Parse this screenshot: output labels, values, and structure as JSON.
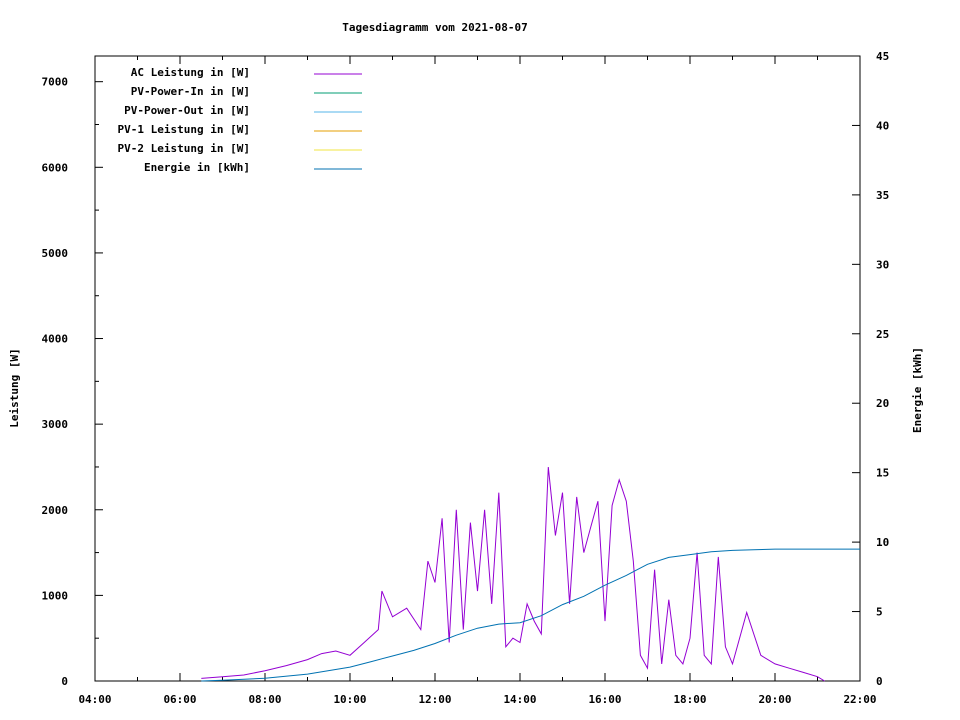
{
  "chart_data": {
    "type": "line",
    "title": "Tagesdiagramm vom 2021-08-07",
    "ylabel": "Leistung [W]",
    "y2label": "Energie [kWh]",
    "xlim": [
      "04:00",
      "22:00"
    ],
    "ylim": [
      0,
      7300
    ],
    "y2lim": [
      0,
      45
    ],
    "x_ticks": [
      "04:00",
      "06:00",
      "08:00",
      "10:00",
      "12:00",
      "14:00",
      "16:00",
      "18:00",
      "20:00",
      "22:00"
    ],
    "y_ticks": [
      0,
      1000,
      2000,
      3000,
      4000,
      5000,
      6000,
      7000
    ],
    "y2_ticks": [
      0,
      5,
      10,
      15,
      20,
      25,
      30,
      35,
      40,
      45
    ],
    "grid": false,
    "legend_position": "top-left",
    "legend": [
      {
        "name": "AC Leistung in [W]",
        "color": "#9400d3"
      },
      {
        "name": "PV-Power-In in [W]",
        "color": "#009e73"
      },
      {
        "name": "PV-Power-Out in [W]",
        "color": "#56b4e9"
      },
      {
        "name": "PV-1 Leistung in [W]",
        "color": "#e69f00"
      },
      {
        "name": "PV-2 Leistung in [W]",
        "color": "#f0e442"
      },
      {
        "name": "Energie in [kWh]",
        "color": "#0072b2"
      }
    ],
    "series": [
      {
        "name": "AC Leistung in [W]",
        "axis": "y1",
        "color": "#9400d3",
        "x": [
          "06:30",
          "07:00",
          "07:30",
          "08:00",
          "08:30",
          "09:00",
          "09:20",
          "09:40",
          "10:00",
          "10:20",
          "10:40",
          "10:45",
          "11:00",
          "11:20",
          "11:40",
          "11:50",
          "12:00",
          "12:10",
          "12:20",
          "12:30",
          "12:40",
          "12:50",
          "13:00",
          "13:10",
          "13:20",
          "13:30",
          "13:40",
          "13:50",
          "14:00",
          "14:10",
          "14:20",
          "14:30",
          "14:40",
          "14:50",
          "15:00",
          "15:10",
          "15:20",
          "15:30",
          "15:40",
          "15:50",
          "16:00",
          "16:10",
          "16:20",
          "16:30",
          "16:40",
          "16:50",
          "17:00",
          "17:10",
          "17:20",
          "17:30",
          "17:40",
          "17:50",
          "18:00",
          "18:10",
          "18:20",
          "18:30",
          "18:40",
          "18:50",
          "19:00",
          "19:20",
          "19:40",
          "20:00",
          "20:20",
          "20:40",
          "21:00",
          "21:10"
        ],
        "values": [
          30,
          50,
          70,
          120,
          180,
          250,
          320,
          350,
          300,
          450,
          600,
          1050,
          750,
          850,
          600,
          1400,
          1150,
          1900,
          450,
          2000,
          600,
          1850,
          1050,
          2000,
          900,
          2200,
          400,
          500,
          450,
          900,
          700,
          550,
          2500,
          1700,
          2200,
          900,
          2150,
          1500,
          1800,
          2100,
          700,
          2050,
          2350,
          2100,
          1400,
          300,
          150,
          1300,
          200,
          950,
          300,
          200,
          500,
          1500,
          300,
          200,
          1450,
          400,
          200,
          800,
          300,
          200,
          150,
          100,
          50,
          0
        ]
      },
      {
        "name": "Energie in [kWh]",
        "axis": "y2",
        "color": "#0072b2",
        "x": [
          "06:30",
          "07:00",
          "08:00",
          "09:00",
          "10:00",
          "10:30",
          "11:00",
          "11:30",
          "12:00",
          "12:30",
          "13:00",
          "13:30",
          "14:00",
          "14:30",
          "15:00",
          "15:30",
          "16:00",
          "16:30",
          "17:00",
          "17:30",
          "18:00",
          "18:30",
          "19:00",
          "19:30",
          "20:00",
          "20:30",
          "21:00",
          "22:00"
        ],
        "values": [
          0,
          0.05,
          0.2,
          0.5,
          1.0,
          1.4,
          1.8,
          2.2,
          2.7,
          3.3,
          3.8,
          4.1,
          4.2,
          4.7,
          5.5,
          6.1,
          6.9,
          7.6,
          8.4,
          8.9,
          9.1,
          9.3,
          9.4,
          9.45,
          9.5,
          9.5,
          9.5,
          9.5
        ]
      }
    ]
  }
}
